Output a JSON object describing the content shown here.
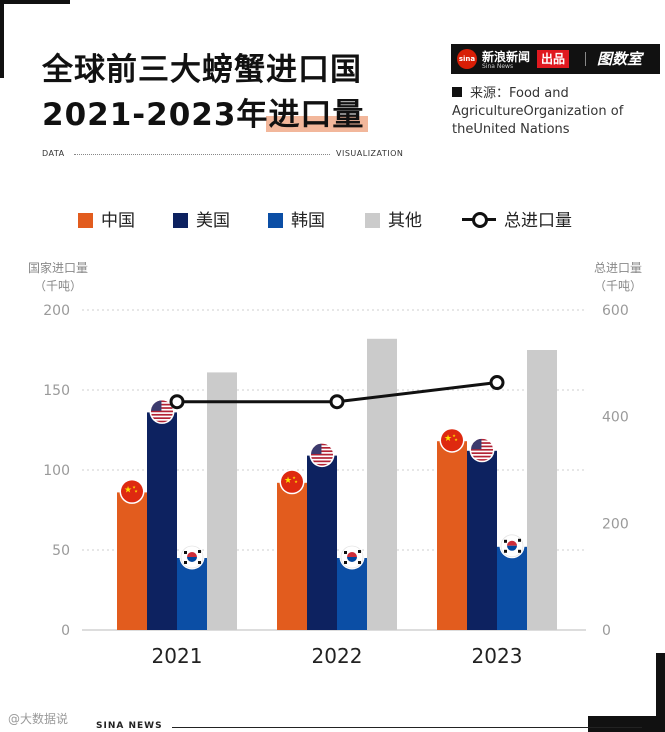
{
  "title": {
    "line1": "全球前三大螃蟹进口国",
    "line2_prefix": "2021-2023年",
    "line2_highlight": "进口量"
  },
  "tagline": {
    "left": "DATA",
    "right": "VISUALIZATION"
  },
  "brand": {
    "name_cn": "新浪新闻",
    "name_en": "Sina News",
    "logo": "sina",
    "badge": "出品",
    "partner": "图数室"
  },
  "source": "来源：Food and AgricultureOrganization of theUnited Nations",
  "legend": {
    "china": "中国",
    "usa": "美国",
    "korea": "韩国",
    "other": "其他",
    "total": "总进口量"
  },
  "colors": {
    "china": "#e25c1e",
    "usa": "#0d2260",
    "korea": "#0b4ea5",
    "other": "#cbcbcb",
    "total": "#111111"
  },
  "chart_data": {
    "type": "bar",
    "title": "全球前三大螃蟹进口国 2021-2023年进口量",
    "categories": [
      "2021",
      "2022",
      "2023"
    ],
    "series": [
      {
        "name": "中国",
        "values": [
          86,
          92,
          118
        ]
      },
      {
        "name": "美国",
        "values": [
          136,
          109,
          112
        ]
      },
      {
        "name": "韩国",
        "values": [
          45,
          45,
          52
        ]
      },
      {
        "name": "其他",
        "values": [
          161,
          182,
          175
        ]
      }
    ],
    "line_series": {
      "name": "总进口量",
      "values": [
        428,
        428,
        464
      ],
      "axis": "right"
    },
    "ylabel_left": "国家进口量\n（千吨）",
    "ylabel_right": "总进口量\n（千吨）",
    "ylim_left": [
      0,
      200
    ],
    "ylim_right": [
      0,
      600
    ],
    "yticks_left": [
      "0",
      "50",
      "100",
      "150",
      "200"
    ],
    "yticks_right": [
      "0",
      "200",
      "400",
      "600"
    ],
    "grid": true,
    "legend_position": "top"
  },
  "footer": {
    "text": "SINA  NEWS",
    "watermark": "@大数据说"
  }
}
